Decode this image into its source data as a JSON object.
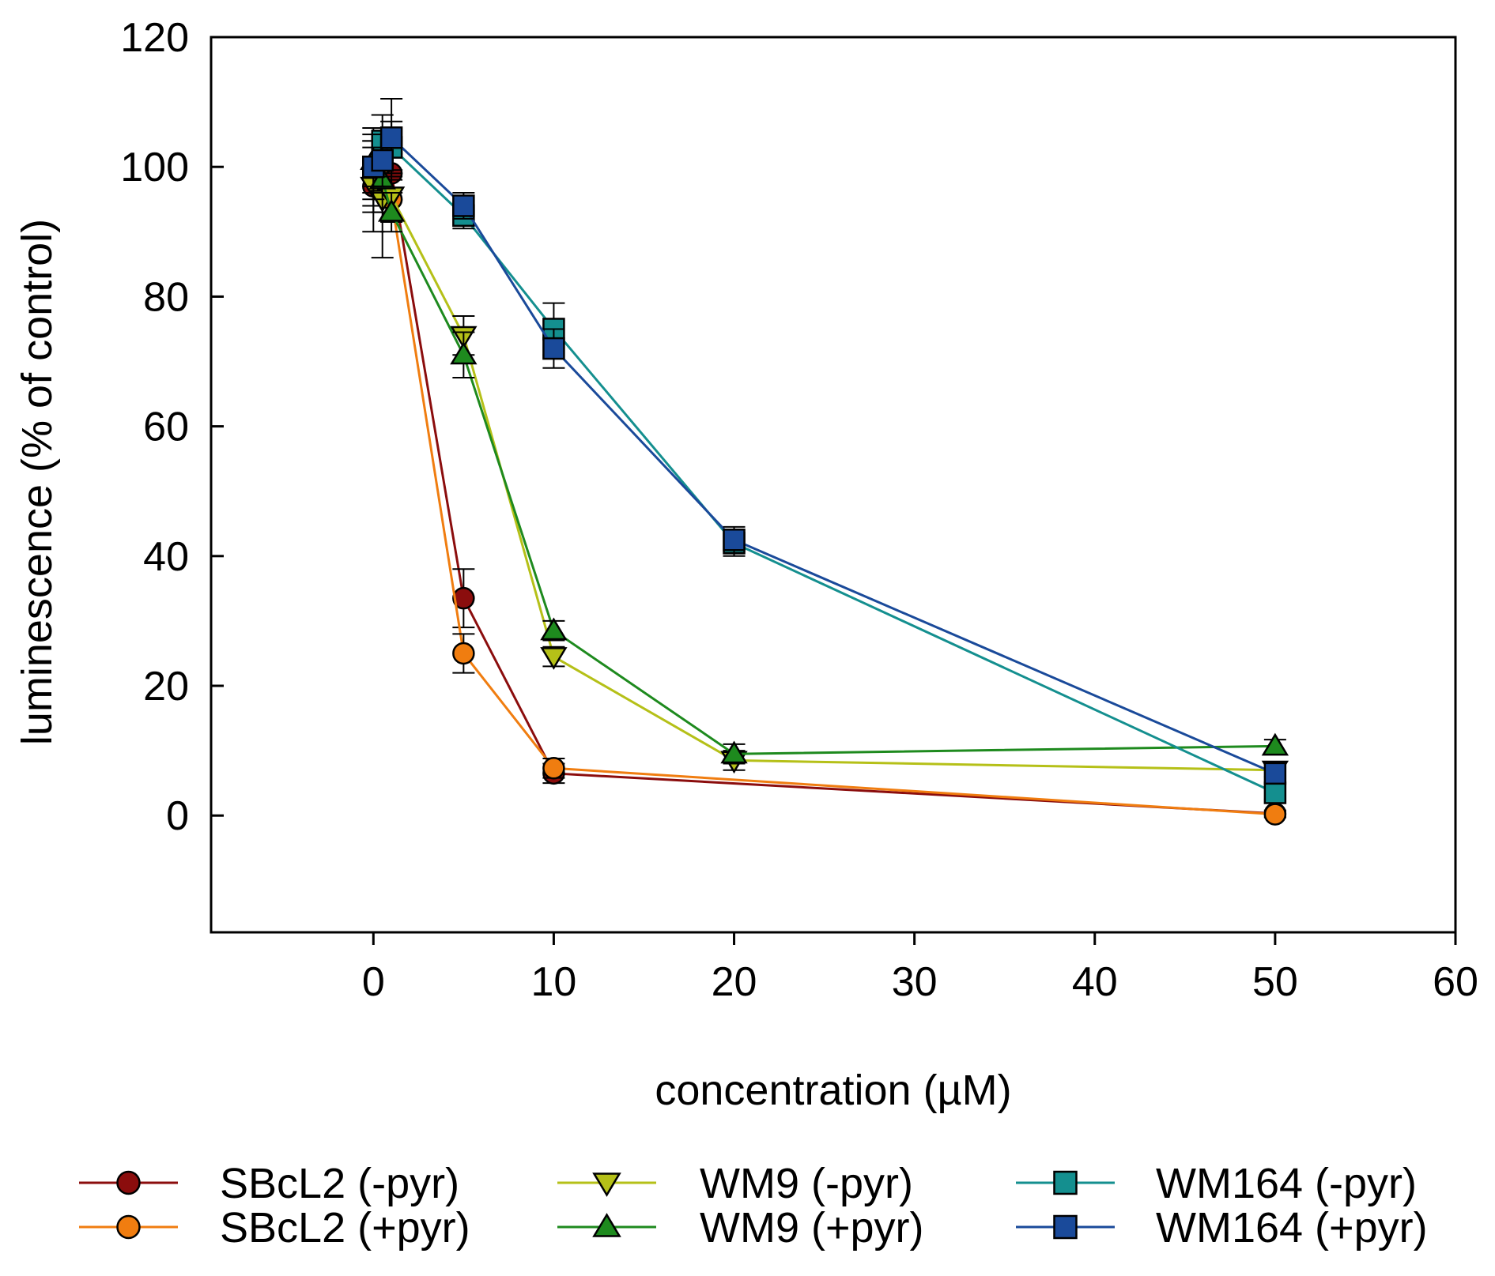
{
  "chart_data": {
    "type": "line",
    "title": "",
    "xlabel": "concentration (µM)",
    "ylabel": "luminescence (% of control)",
    "xlim": [
      -9,
      60
    ],
    "ylim": [
      -18,
      120
    ],
    "xticks": [
      0,
      10,
      20,
      30,
      40,
      50,
      60
    ],
    "yticks": [
      0,
      20,
      40,
      60,
      80,
      100,
      120
    ],
    "xtick_labels": [
      "0",
      "10",
      "20",
      "30",
      "40",
      "50",
      "60"
    ],
    "ytick_labels": [
      "0",
      "20",
      "40",
      "60",
      "80",
      "100",
      "120"
    ],
    "grid": false,
    "legend_position": "bottom",
    "series": [
      {
        "name": "SBcL2 (-pyr)",
        "color": "#8b0d0d",
        "marker": "circle",
        "x": [
          0,
          0.5,
          1,
          5,
          10,
          50
        ],
        "y": [
          97,
          98,
          99,
          33.5,
          6.5,
          0.3
        ],
        "err": [
          4,
          3,
          3,
          4.5,
          1.5,
          0.5
        ]
      },
      {
        "name": "SBcL2 (+pyr)",
        "color": "#f07d10",
        "marker": "circle",
        "x": [
          0,
          0.5,
          1,
          5,
          10,
          50
        ],
        "y": [
          99,
          100.5,
          95,
          25,
          7.3,
          0.2
        ],
        "err": [
          5,
          4,
          3,
          3,
          1.5,
          0.5
        ]
      },
      {
        "name": "WM9 (-pyr)",
        "color": "#b5c018",
        "marker": "triangle-down",
        "x": [
          0,
          0.5,
          1,
          5,
          10,
          20,
          50
        ],
        "y": [
          97,
          95,
          95.5,
          74,
          24.5,
          8.5,
          7
        ],
        "err": [
          7,
          9,
          4,
          3,
          1.5,
          1.5,
          1
        ]
      },
      {
        "name": "WM9 (+pyr)",
        "color": "#1e8a1e",
        "marker": "triangle-up",
        "x": [
          0,
          0.5,
          1,
          5,
          10,
          20,
          50
        ],
        "y": [
          101,
          98,
          93,
          71,
          28.5,
          9.5,
          10.7
        ],
        "err": [
          5,
          5,
          3,
          3.5,
          1.5,
          1.5,
          1
        ]
      },
      {
        "name": "WM164 (-pyr)",
        "color": "#148f8f",
        "marker": "square",
        "x": [
          0,
          0.5,
          1,
          5,
          10,
          20,
          50
        ],
        "y": [
          100,
          104,
          103,
          92.5,
          75,
          42,
          3.5
        ],
        "err": [
          5,
          4,
          4,
          2,
          4,
          2,
          1
        ]
      },
      {
        "name": "WM164 (+pyr)",
        "color": "#1a4a9a",
        "marker": "square",
        "x": [
          0,
          0.5,
          1,
          5,
          10,
          20,
          50
        ],
        "y": [
          100,
          101,
          104.5,
          94,
          72,
          42.5,
          6.5
        ],
        "err": [
          3,
          4,
          6,
          2,
          3,
          2,
          1.5
        ]
      }
    ]
  }
}
